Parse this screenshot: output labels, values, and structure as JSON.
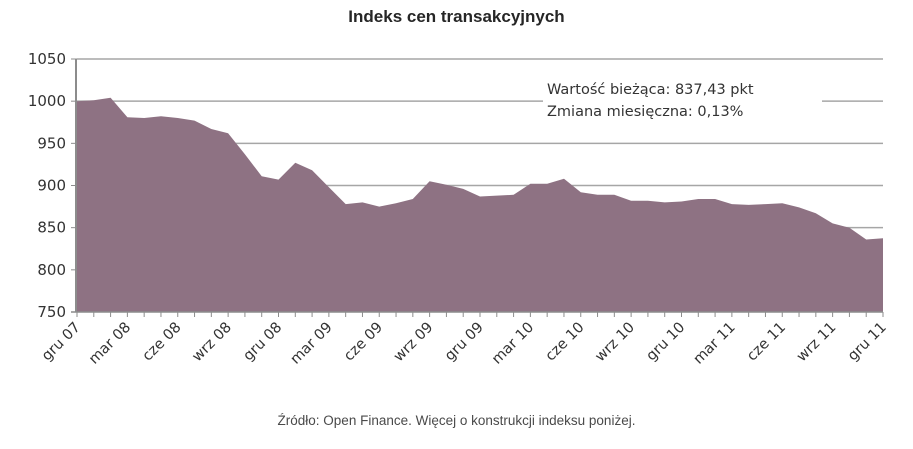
{
  "chart_data": {
    "type": "area",
    "title": "Indeks cen transakcyjnych",
    "xlabel": "",
    "ylabel": "",
    "ylim": [
      750,
      1050
    ],
    "yticks": [
      750,
      800,
      850,
      900,
      950,
      1000,
      1050
    ],
    "grid": true,
    "legend": null,
    "fill_color": "#8e7283",
    "x": [
      "gru 07",
      "sty 08",
      "lut 08",
      "mar 08",
      "kwi 08",
      "maj 08",
      "cze 08",
      "lip 08",
      "sie 08",
      "wrz 08",
      "paź 08",
      "lis 08",
      "gru 08",
      "sty 09",
      "lut 09",
      "mar 09",
      "kwi 09",
      "maj 09",
      "cze 09",
      "lip 09",
      "sie 09",
      "wrz 09",
      "paź 09",
      "lis 09",
      "gru 09",
      "sty 10",
      "lut 10",
      "mar 10",
      "kwi 10",
      "maj 10",
      "cze 10",
      "lip 10",
      "sie 10",
      "wrz 10",
      "paź 10",
      "lis 10",
      "gru 10",
      "sty 11",
      "lut 11",
      "mar 11",
      "kwi 11",
      "maj 11",
      "cze 11",
      "lip 11",
      "sie 11",
      "wrz 11",
      "paź 11",
      "lis 11",
      "gru 11"
    ],
    "xtick_labels": [
      "gru 07",
      "mar 08",
      "cze 08",
      "wrz 08",
      "gru 08",
      "mar 09",
      "cze 09",
      "wrz 09",
      "gru 09",
      "mar 10",
      "cze 10",
      "wrz 10",
      "gru 10",
      "mar 11",
      "cze 11",
      "wrz 11",
      "gru 11"
    ],
    "series": [
      {
        "name": "Indeks cen transakcyjnych",
        "values": [
          1000,
          1001,
          1004,
          981,
          980,
          982,
          980,
          977,
          967,
          962,
          937,
          911,
          907,
          927,
          918,
          898,
          878,
          880,
          875,
          879,
          884,
          905,
          901,
          896,
          887,
          888,
          889,
          902,
          902,
          908,
          892,
          889,
          889,
          882,
          882,
          880,
          881,
          884,
          884,
          878,
          877,
          878,
          879,
          874,
          867,
          855,
          850,
          836,
          837.43
        ]
      }
    ],
    "annotations": [
      "Wartość bieżąca: 837,43 pkt",
      "Zmiana miesięczna: 0,13%"
    ]
  },
  "header": {
    "title": "Indeks cen transakcyjnych"
  },
  "annotation": {
    "current_value": "Wartość bieżąca: 837,43 pkt",
    "monthly_change": "Zmiana miesięczna: 0,13%"
  },
  "footer": {
    "source": "Źródło: Open Finance. Więcej o konstrukcji indeksu poniżej."
  },
  "colors": {
    "fill": "#8e7283",
    "grid": "#a6a6a6",
    "axis": "#8c8c8c",
    "text": "#333333"
  }
}
